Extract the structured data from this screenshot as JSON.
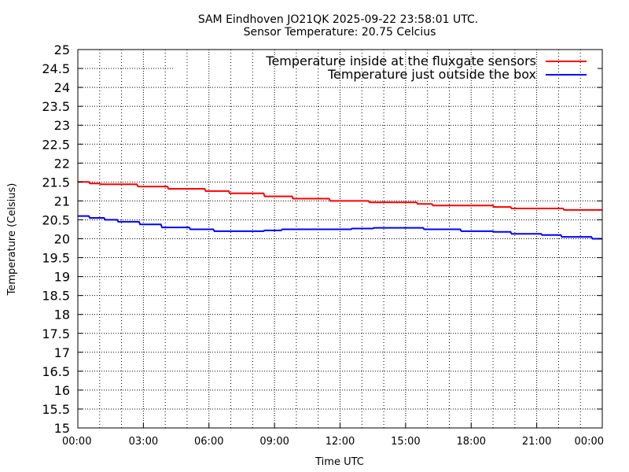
{
  "chart_data": {
    "type": "line",
    "title": "SAM Eindhoven JO21QK 2025-09-22 23:58:01 UTC.",
    "subtitle": "Sensor Temperature: 20.75 Celcius",
    "xlabel": "Time UTC",
    "ylabel": "Temperature (Celsius)",
    "xlim": [
      0,
      24
    ],
    "ylim": [
      15,
      25
    ],
    "grid": true,
    "legend_position": "top-right",
    "x_ticks": [
      {
        "value": 0,
        "label": "00:00"
      },
      {
        "value": 3,
        "label": "03:00"
      },
      {
        "value": 6,
        "label": "06:00"
      },
      {
        "value": 9,
        "label": "09:00"
      },
      {
        "value": 12,
        "label": "12:00"
      },
      {
        "value": 15,
        "label": "15:00"
      },
      {
        "value": 18,
        "label": "18:00"
      },
      {
        "value": 21,
        "label": "21:00"
      },
      {
        "value": 24,
        "label": "00:00"
      }
    ],
    "y_ticks": [
      {
        "value": 15,
        "label": "15"
      },
      {
        "value": 15.5,
        "label": "15.5"
      },
      {
        "value": 16,
        "label": "16"
      },
      {
        "value": 16.5,
        "label": "16.5"
      },
      {
        "value": 17,
        "label": "17"
      },
      {
        "value": 17.5,
        "label": "17.5"
      },
      {
        "value": 18,
        "label": "18"
      },
      {
        "value": 18.5,
        "label": "18.5"
      },
      {
        "value": 19,
        "label": "19"
      },
      {
        "value": 19.5,
        "label": "19.5"
      },
      {
        "value": 20,
        "label": "20"
      },
      {
        "value": 20.5,
        "label": "20.5"
      },
      {
        "value": 21,
        "label": "21"
      },
      {
        "value": 21.5,
        "label": "21.5"
      },
      {
        "value": 22,
        "label": "22"
      },
      {
        "value": 22.5,
        "label": "22.5"
      },
      {
        "value": 23,
        "label": "23"
      },
      {
        "value": 23.5,
        "label": "23.5"
      },
      {
        "value": 24,
        "label": "24"
      },
      {
        "value": 24.5,
        "label": "24.5"
      },
      {
        "value": 25,
        "label": "25"
      }
    ],
    "series": [
      {
        "name": "Temperature inside at the fluxgate sensors",
        "color": "#ff0000",
        "x": [
          0,
          0.5,
          0.55,
          1.0,
          1.05,
          2.7,
          2.75,
          4.1,
          4.15,
          5.8,
          5.85,
          6.9,
          6.95,
          8.5,
          8.55,
          9.8,
          9.85,
          11.5,
          11.55,
          13.3,
          13.35,
          15.5,
          15.55,
          16.2,
          16.25,
          19.0,
          19.05,
          19.8,
          19.85,
          22.2,
          22.25,
          24.0
        ],
        "y": [
          21.5,
          21.5,
          21.46,
          21.46,
          21.44,
          21.44,
          21.38,
          21.38,
          21.32,
          21.32,
          21.26,
          21.26,
          21.2,
          21.2,
          21.12,
          21.12,
          21.06,
          21.06,
          21.0,
          21.0,
          20.96,
          20.96,
          20.92,
          20.92,
          20.88,
          20.88,
          20.84,
          20.84,
          20.8,
          20.8,
          20.76,
          20.76
        ]
      },
      {
        "name": "Temperature just outside the box",
        "color": "#0000ff",
        "x": [
          0,
          0.5,
          0.55,
          1.2,
          1.25,
          1.8,
          1.85,
          2.8,
          2.85,
          3.8,
          3.85,
          5.1,
          5.15,
          6.2,
          6.25,
          8.5,
          8.55,
          9.3,
          9.35,
          12.5,
          12.55,
          13.5,
          13.55,
          15.8,
          15.85,
          17.5,
          17.55,
          19.0,
          19.05,
          19.8,
          19.85,
          21.2,
          21.25,
          22.1,
          22.15,
          23.5,
          23.55,
          24.0
        ],
        "y": [
          20.6,
          20.6,
          20.55,
          20.55,
          20.5,
          20.5,
          20.45,
          20.45,
          20.38,
          20.38,
          20.3,
          20.3,
          20.25,
          20.25,
          20.2,
          20.2,
          20.22,
          20.22,
          20.25,
          20.25,
          20.27,
          20.27,
          20.29,
          20.29,
          20.25,
          20.25,
          20.2,
          20.2,
          20.18,
          20.18,
          20.13,
          20.13,
          20.1,
          20.1,
          20.05,
          20.05,
          20.0,
          20.0
        ]
      }
    ]
  }
}
